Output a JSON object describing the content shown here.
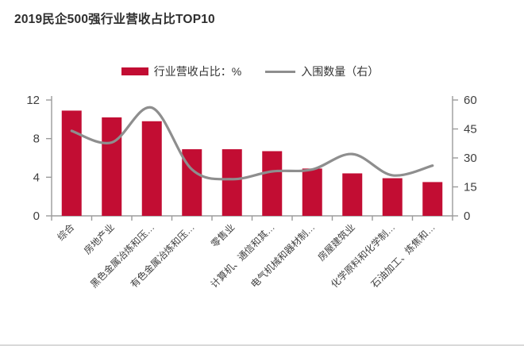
{
  "title": "2019民企500强行业营收占比TOP10",
  "legend": {
    "bar_label": "行业营收占比：%",
    "line_label": "入围数量（右）"
  },
  "colors": {
    "bar": "#c20d33",
    "line": "#8e8e8e",
    "axis": "#9b9b9b",
    "tick_text": "#3f3f3f",
    "title_text": "#2e2e2e"
  },
  "chart_data": {
    "type": "bar",
    "subtype": "bar+line dual axis",
    "title": "2019民企500强行业营收占比TOP10",
    "categories": [
      "综合",
      "房地产业",
      "黑色金属冶炼和压…",
      "有色金属冶炼和压…",
      "零售业",
      "计算机、通信和其…",
      "电气机械和器材制…",
      "房屋建筑业",
      "化学原料和化学制…",
      "石油加工、炼焦和…"
    ],
    "series": [
      {
        "name": "行业营收占比：%",
        "type": "bar",
        "axis": "left",
        "color": "#c20d33",
        "values": [
          10.9,
          10.2,
          9.8,
          6.9,
          6.9,
          6.7,
          4.9,
          4.4,
          3.9,
          3.5
        ]
      },
      {
        "name": "入围数量（右）",
        "type": "line",
        "axis": "right",
        "color": "#8e8e8e",
        "values": [
          44,
          38,
          56,
          24,
          19,
          23,
          24,
          32,
          21,
          26
        ]
      }
    ],
    "left_axis": {
      "label": "",
      "range": [
        0,
        12
      ],
      "ticks": [
        0,
        4,
        8,
        12
      ]
    },
    "right_axis": {
      "label": "",
      "range": [
        0,
        60
      ],
      "ticks": [
        0,
        15,
        30,
        45,
        60
      ]
    },
    "grid": false,
    "legend_position": "top-center",
    "x_label_rotation": 45
  }
}
